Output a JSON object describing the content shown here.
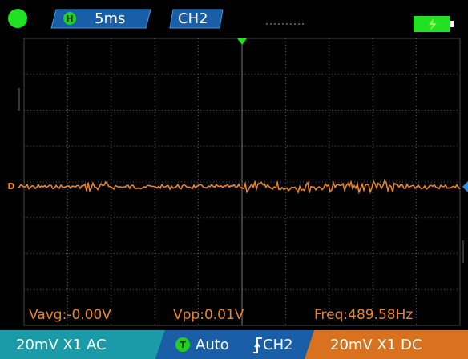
{
  "top_bar": {
    "timebase_badge": "H",
    "timebase": "5ms",
    "channel": "CH2"
  },
  "measurements": {
    "vavg": "Vavg:-0.00V",
    "vpp": "Vpp:0.01V",
    "freq": "Freq:489.58Hz"
  },
  "bottom_bar": {
    "ch1": "20mV X1 AC",
    "trigger_badge": "T",
    "trigger_mode": "Auto",
    "trigger_source": "CH2",
    "ch2": "20mV X1 DC"
  },
  "markers": {
    "ch_marker": "D"
  }
}
